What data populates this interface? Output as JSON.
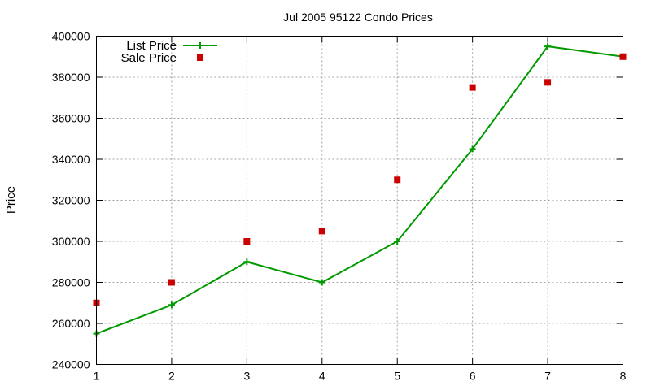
{
  "chart_data": {
    "type": "line",
    "title": "Jul 2005 95122 Condo Prices",
    "xlabel": "",
    "ylabel": "Price",
    "x": [
      1,
      2,
      3,
      4,
      5,
      6,
      7,
      8
    ],
    "xlim": [
      1,
      8
    ],
    "ylim": [
      240000,
      400000
    ],
    "x_ticks": [
      "1",
      "2",
      "3",
      "4",
      "5",
      "6",
      "7",
      "8"
    ],
    "y_ticks": [
      "240000",
      "260000",
      "280000",
      "300000",
      "320000",
      "340000",
      "360000",
      "380000",
      "400000"
    ],
    "grid": true,
    "legend_position": "top-left",
    "series": [
      {
        "name": "List Price",
        "style": "lines+points",
        "marker": "plus",
        "color": "#009900",
        "values": [
          255000,
          269000,
          290000,
          280000,
          300000,
          345000,
          395000,
          390000
        ]
      },
      {
        "name": "Sale Price",
        "style": "points",
        "marker": "square",
        "color": "#cc0000",
        "values": [
          270000,
          280000,
          300000,
          305000,
          330000,
          375000,
          377500,
          390000
        ]
      }
    ]
  }
}
